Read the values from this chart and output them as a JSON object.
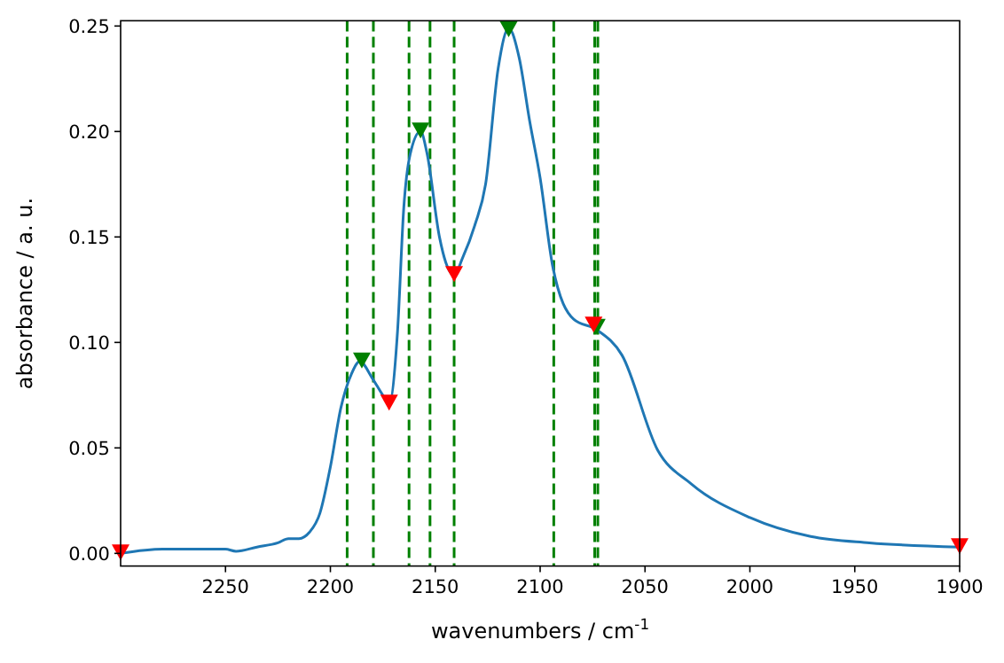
{
  "chart_data": {
    "type": "line",
    "xlabel": "wavenumbers / cm$^{-1}$",
    "ylabel": "absorbance / a. u.",
    "xlim": [
      2300,
      1900
    ],
    "xticks": [
      2250,
      2200,
      2150,
      2100,
      2050,
      2000,
      1950,
      1900
    ],
    "ylim": [
      -0.006,
      0.2525
    ],
    "yticks": [
      {
        "value": 0,
        "label": "0.00"
      },
      {
        "value": 0.05,
        "label": "0.05"
      },
      {
        "value": 0.1,
        "label": "0.10"
      },
      {
        "value": 0.15,
        "label": "0.15"
      },
      {
        "value": 0.2,
        "label": "0.20"
      },
      {
        "value": 0.25,
        "label": "0.25"
      }
    ],
    "grid": false,
    "series": [
      {
        "color": "#1f77b4",
        "marker": "none",
        "line_style": "solid",
        "x": [
          2300,
          2280,
          2265,
          2250,
          2245,
          2235,
          2225,
          2220,
          2215,
          2210,
          2205,
          2200,
          2195,
          2190,
          2186,
          2180,
          2175,
          2172,
          2168,
          2165,
          2162,
          2157,
          2154,
          2148,
          2145,
          2141,
          2137,
          2131,
          2126,
          2120,
          2115,
          2110,
          2105,
          2100,
          2094,
          2084,
          2073,
          2061,
          2044,
          2028,
          2000,
          1971,
          1943,
          1900
        ],
        "values": [
          0.0,
          0.002,
          0.002,
          0.002,
          0.001,
          0.003,
          0.005,
          0.007,
          0.007,
          0.01,
          0.019,
          0.041,
          0.069,
          0.085,
          0.091,
          0.083,
          0.075,
          0.071,
          0.105,
          0.164,
          0.189,
          0.2,
          0.19,
          0.15,
          0.138,
          0.132,
          0.14,
          0.156,
          0.175,
          0.23,
          0.249,
          0.235,
          0.205,
          0.178,
          0.136,
          0.111,
          0.106,
          0.094,
          0.049,
          0.033,
          0.017,
          0.008,
          0.005,
          0.003
        ]
      },
      {
        "type": "scatter",
        "color": "#008000",
        "marker": "triangle",
        "x": [
          2185,
          2157,
          2115,
          2073
        ],
        "values": [
          0.091,
          0.2,
          0.248,
          0.107
        ]
      },
      {
        "type": "scatter",
        "color": "#ff0000",
        "marker": "triangle",
        "x": [
          2300,
          2172,
          2141,
          2074.5,
          1900
        ],
        "values": [
          0.0,
          0.071,
          0.132,
          0.108,
          0.003
        ]
      }
    ],
    "ref_lines": [
      {
        "axis": "x",
        "value": 2192,
        "color": "#008000",
        "line_style": "dashed"
      },
      {
        "axis": "x",
        "value": 2179.5,
        "color": "#008000",
        "line_style": "dashed"
      },
      {
        "axis": "x",
        "value": 2162.5,
        "color": "#008000",
        "line_style": "dashed"
      },
      {
        "axis": "x",
        "value": 2152.5,
        "color": "#008000",
        "line_style": "dashed"
      },
      {
        "axis": "x",
        "value": 2141,
        "color": "#008000",
        "line_style": "dashed"
      },
      {
        "axis": "x",
        "value": 2093.5,
        "color": "#008000",
        "line_style": "dashed"
      },
      {
        "axis": "x",
        "value": 2074,
        "color": "#008000",
        "line_style": "dashed"
      },
      {
        "axis": "x",
        "value": 2072.5,
        "color": "#008000",
        "line_style": "dashed"
      }
    ]
  }
}
